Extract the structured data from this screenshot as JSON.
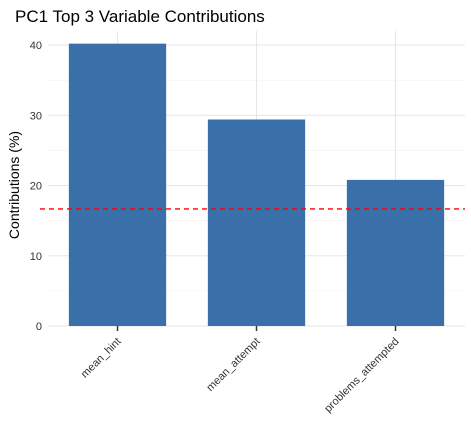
{
  "chart_data": {
    "type": "bar",
    "title": "PC1 Top 3 Variable Contributions",
    "xlabel": "",
    "ylabel": "Contributions (%)",
    "categories": [
      "mean_hint",
      "mean_attempt",
      "problems_attempted"
    ],
    "values": [
      40.2,
      29.4,
      20.8
    ],
    "ylim": [
      0,
      42
    ],
    "yticks": [
      0,
      10,
      20,
      30,
      40
    ],
    "reference_line": {
      "value": 16.67,
      "style": "dashed",
      "color": "#ff0000"
    },
    "bar_color": "#3a70aa",
    "grid": true,
    "legend": "none"
  }
}
